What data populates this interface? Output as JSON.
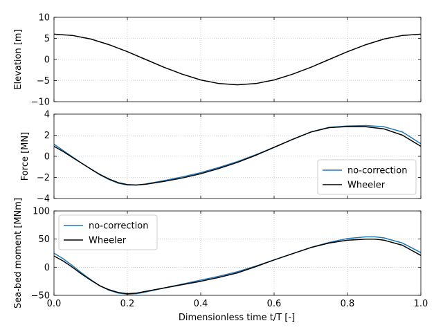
{
  "colors": {
    "no_correction": "#1f77b4",
    "wheeler": "#000000",
    "grid": "#b0b0b0",
    "frame": "#000000"
  },
  "chart_data": {
    "type": "line",
    "shared_x": {
      "label": "Dimensionless time t/T [-]",
      "lim": [
        0,
        1
      ],
      "ticks": [
        0,
        0.2,
        0.4,
        0.6,
        0.8,
        1.0
      ],
      "tick_labels": [
        "0.0",
        "0.2",
        "0.4",
        "0.6",
        "0.8",
        "1.0"
      ]
    },
    "panels": [
      {
        "ylabel": "Elevation [m]",
        "ylim": [
          -10,
          10
        ],
        "yticks": [
          -10,
          -5,
          0,
          5,
          10
        ],
        "ytick_labels": [
          "−10",
          "−5",
          "0",
          "5",
          "10"
        ],
        "legend": null,
        "series": [
          {
            "name": "Wheeler",
            "color_key": "wheeler",
            "x": [
              0,
              0.05,
              0.1,
              0.15,
              0.2,
              0.25,
              0.3,
              0.35,
              0.4,
              0.45,
              0.5,
              0.55,
              0.6,
              0.65,
              0.7,
              0.75,
              0.8,
              0.85,
              0.9,
              0.95,
              1.0
            ],
            "y": [
              6.0,
              5.7,
              4.85,
              3.5,
              1.85,
              0.0,
              -1.85,
              -3.5,
              -4.85,
              -5.7,
              -6.0,
              -5.7,
              -4.85,
              -3.5,
              -1.85,
              0.0,
              1.85,
              3.5,
              4.85,
              5.7,
              6.0
            ]
          }
        ]
      },
      {
        "ylabel": "Force [MN]",
        "ylim": [
          -4,
          4
        ],
        "yticks": [
          -4,
          -2,
          0,
          2,
          4
        ],
        "ytick_labels": [
          "−4",
          "−2",
          "0",
          "2",
          "4"
        ],
        "legend": {
          "position": "lower-right",
          "entries": [
            "no-correction",
            "Wheeler"
          ]
        },
        "series": [
          {
            "name": "no-correction",
            "color_key": "no_correction",
            "x": [
              0,
              0.025,
              0.05,
              0.075,
              0.1,
              0.125,
              0.15,
              0.175,
              0.2,
              0.225,
              0.25,
              0.3,
              0.35,
              0.4,
              0.45,
              0.5,
              0.55,
              0.6,
              0.65,
              0.7,
              0.75,
              0.8,
              0.85,
              0.9,
              0.95,
              1.0
            ],
            "y": [
              1.15,
              0.55,
              -0.05,
              -0.65,
              -1.2,
              -1.75,
              -2.2,
              -2.55,
              -2.72,
              -2.72,
              -2.62,
              -2.3,
              -1.95,
              -1.55,
              -1.05,
              -0.5,
              0.15,
              0.85,
              1.6,
              2.3,
              2.75,
              2.88,
              2.92,
              2.8,
              2.3,
              1.2
            ]
          },
          {
            "name": "Wheeler",
            "color_key": "wheeler",
            "x": [
              0,
              0.025,
              0.05,
              0.075,
              0.1,
              0.125,
              0.15,
              0.175,
              0.2,
              0.225,
              0.25,
              0.3,
              0.35,
              0.4,
              0.45,
              0.5,
              0.55,
              0.6,
              0.65,
              0.7,
              0.75,
              0.8,
              0.85,
              0.9,
              0.95,
              1.0
            ],
            "y": [
              0.95,
              0.45,
              -0.1,
              -0.65,
              -1.2,
              -1.72,
              -2.15,
              -2.5,
              -2.68,
              -2.72,
              -2.65,
              -2.38,
              -2.05,
              -1.65,
              -1.15,
              -0.58,
              0.1,
              0.85,
              1.6,
              2.3,
              2.72,
              2.82,
              2.8,
              2.6,
              2.0,
              0.95
            ]
          }
        ]
      },
      {
        "ylabel": "Sea-bed moment [MNm]",
        "ylim": [
          -50,
          100
        ],
        "yticks": [
          -50,
          0,
          50,
          100
        ],
        "ytick_labels": [
          "−50",
          "0",
          "50",
          "100"
        ],
        "legend": {
          "position": "upper-left",
          "entries": [
            "no-correction",
            "Wheeler"
          ]
        },
        "series": [
          {
            "name": "no-correction",
            "color_key": "no_correction",
            "x": [
              0,
              0.025,
              0.05,
              0.075,
              0.1,
              0.125,
              0.15,
              0.175,
              0.2,
              0.225,
              0.25,
              0.3,
              0.35,
              0.4,
              0.45,
              0.5,
              0.55,
              0.6,
              0.65,
              0.7,
              0.75,
              0.8,
              0.85,
              0.875,
              0.9,
              0.95,
              1.0
            ],
            "y": [
              25,
              15,
              3,
              -10,
              -22,
              -33,
              -41,
              -46,
              -48,
              -47,
              -44,
              -37,
              -30,
              -23,
              -16,
              -8,
              2,
              13,
              24,
              35,
              44,
              51,
              54,
              54,
              52,
              43,
              26
            ]
          },
          {
            "name": "Wheeler",
            "color_key": "wheeler",
            "x": [
              0,
              0.025,
              0.05,
              0.075,
              0.1,
              0.125,
              0.15,
              0.175,
              0.2,
              0.225,
              0.25,
              0.3,
              0.35,
              0.4,
              0.45,
              0.5,
              0.55,
              0.6,
              0.65,
              0.7,
              0.75,
              0.8,
              0.85,
              0.875,
              0.9,
              0.95,
              1.0
            ],
            "y": [
              20,
              11,
              0,
              -12,
              -23,
              -33,
              -40,
              -45,
              -47,
              -46,
              -43,
              -37,
              -31,
              -25,
              -18,
              -10,
              1,
              13,
              24,
              35,
              43,
              48,
              50,
              50,
              48,
              39,
              21
            ]
          }
        ]
      }
    ]
  }
}
